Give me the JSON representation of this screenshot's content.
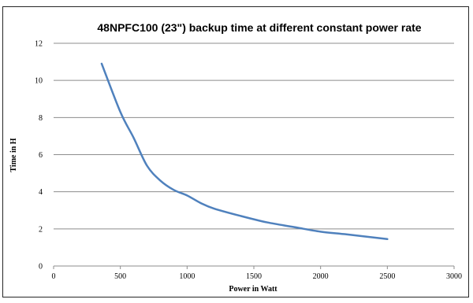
{
  "chart_data": {
    "type": "line",
    "title": "48NPFC100 (23\")  backup time at different constant power rate",
    "xlabel": "Power in Watt",
    "ylabel": "Time in H",
    "xlim": [
      0,
      3000
    ],
    "ylim": [
      0,
      12
    ],
    "xticks": [
      0,
      500,
      1000,
      1500,
      2000,
      2500,
      3000
    ],
    "yticks": [
      0,
      2,
      4,
      6,
      8,
      10,
      12
    ],
    "grid": true,
    "legend": "none",
    "series": [
      {
        "color": "#4f81bd",
        "x": [
          360,
          500,
          600,
          700,
          800,
          900,
          1000,
          1100,
          1200,
          1400,
          1600,
          1800,
          2000,
          2200,
          2500
        ],
        "y": [
          10.9,
          8.3,
          6.9,
          5.4,
          4.6,
          4.1,
          3.8,
          3.4,
          3.1,
          2.7,
          2.35,
          2.1,
          1.85,
          1.7,
          1.45
        ]
      }
    ]
  }
}
